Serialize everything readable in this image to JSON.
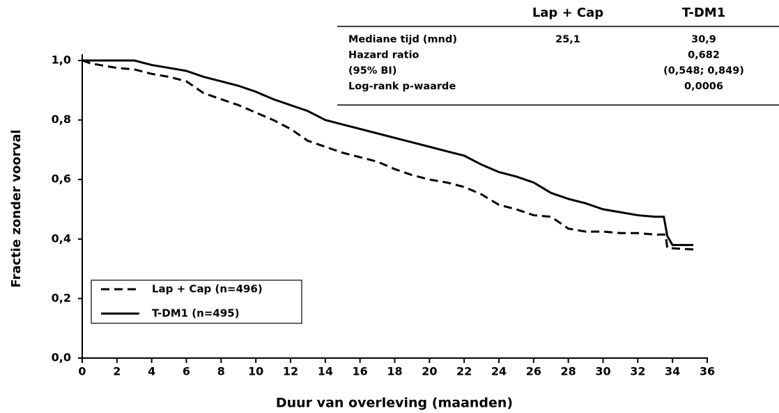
{
  "chart_data": {
    "type": "line",
    "xlabel": "Duur van overleving (maanden)",
    "ylabel": "Fractie zonder voorval",
    "xlim": [
      0,
      36
    ],
    "ylim": [
      0,
      1
    ],
    "xticks": [
      0,
      2,
      4,
      6,
      8,
      10,
      12,
      14,
      16,
      18,
      20,
      22,
      24,
      26,
      28,
      30,
      32,
      34,
      36
    ],
    "yticks": [
      {
        "value": 0,
        "label": "0,0"
      },
      {
        "value": 0.2,
        "label": "0,2"
      },
      {
        "value": 0.4,
        "label": "0,4"
      },
      {
        "value": 0.6,
        "label": "0,6"
      },
      {
        "value": 0.8,
        "label": "0,8"
      },
      {
        "value": 1,
        "label": "1,0"
      }
    ],
    "grid": false,
    "legend": "lower left",
    "series": [
      {
        "name": "Lap + Cap (n=496)",
        "color": "#000000",
        "style": "dashed",
        "x": [
          0,
          0.5,
          1,
          2,
          3,
          4,
          5,
          6,
          7,
          8,
          9,
          10,
          11,
          12,
          13,
          14,
          15,
          16,
          17,
          18,
          19,
          20,
          21,
          22,
          23,
          24,
          25,
          26,
          27,
          28,
          29,
          30,
          31,
          32,
          33,
          33.6,
          33.7,
          35.2
        ],
        "values": [
          1.0,
          0.99,
          0.985,
          0.975,
          0.97,
          0.955,
          0.945,
          0.93,
          0.89,
          0.87,
          0.85,
          0.825,
          0.8,
          0.77,
          0.73,
          0.71,
          0.69,
          0.675,
          0.66,
          0.635,
          0.615,
          0.6,
          0.59,
          0.575,
          0.55,
          0.515,
          0.5,
          0.48,
          0.475,
          0.435,
          0.425,
          0.425,
          0.42,
          0.42,
          0.415,
          0.415,
          0.37,
          0.365
        ]
      },
      {
        "name": "T-DM1 (n=495)",
        "color": "#000000",
        "style": "solid",
        "x": [
          0,
          1,
          2,
          3,
          4,
          5,
          6,
          7,
          8,
          9,
          10,
          11,
          12,
          13,
          14,
          15,
          16,
          17,
          18,
          19,
          20,
          21,
          22,
          23,
          24,
          25,
          26,
          27,
          28,
          29,
          30,
          31,
          32,
          33,
          33.5,
          33.7,
          34,
          35.2
        ],
        "values": [
          1.0,
          1.0,
          1.0,
          1.0,
          0.985,
          0.975,
          0.965,
          0.945,
          0.93,
          0.915,
          0.895,
          0.87,
          0.85,
          0.83,
          0.8,
          0.785,
          0.77,
          0.755,
          0.74,
          0.725,
          0.71,
          0.695,
          0.68,
          0.65,
          0.625,
          0.61,
          0.59,
          0.555,
          0.535,
          0.52,
          0.5,
          0.49,
          0.48,
          0.475,
          0.475,
          0.41,
          0.38,
          0.38
        ]
      }
    ],
    "table": {
      "columns": [
        "Lap + Cap",
        "T-DM1"
      ],
      "rows": [
        {
          "label": "Mediane tijd (mnd)",
          "cells": [
            "25,1",
            "30,9"
          ]
        },
        {
          "label": "Hazard ratio",
          "cells": [
            null,
            "0,682"
          ]
        },
        {
          "label": "(95% BI)",
          "cells": [
            null,
            "(0,548; 0,849)"
          ]
        },
        {
          "label": "Log-rank p-waarde",
          "cells": [
            null,
            "0,0006"
          ]
        }
      ]
    }
  }
}
